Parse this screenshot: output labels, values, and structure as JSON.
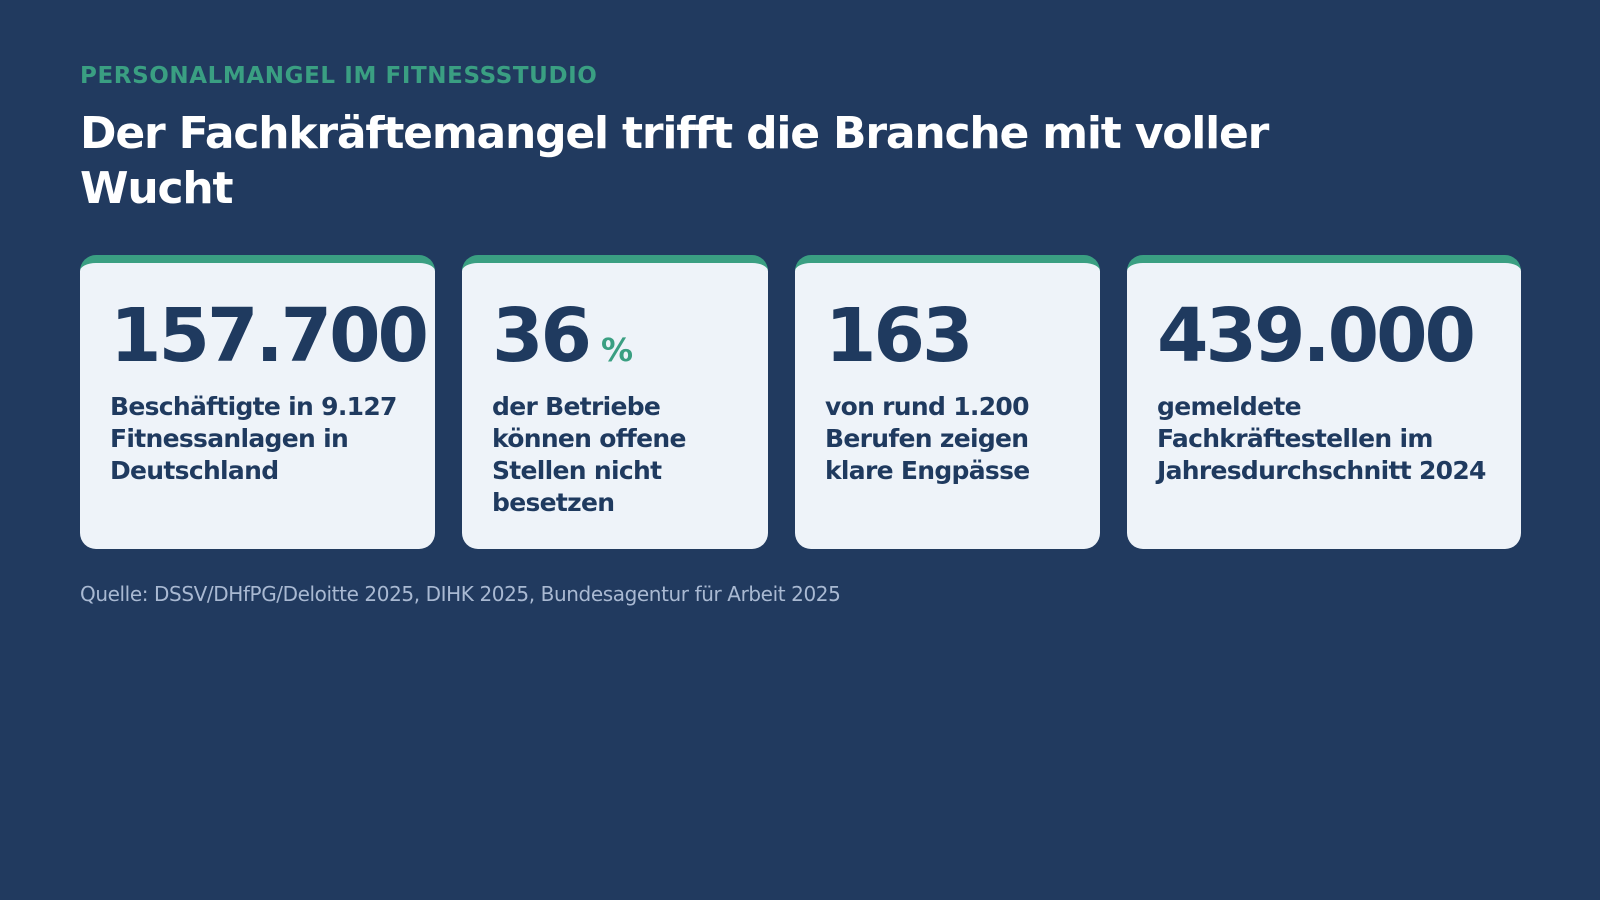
{
  "header": {
    "eyebrow": "PERSONALMANGEL IM FITNESSSTUDIO",
    "title": "Der Fachkräftemangel trifft die Branche mit voller Wucht"
  },
  "stats": [
    {
      "value": "157.700",
      "unit": "",
      "description": "Beschäftigte in 9.127 Fitnessanlagen in Deutschland"
    },
    {
      "value": "36",
      "unit": "%",
      "description": "der Betriebe können offene Stellen nicht besetzen"
    },
    {
      "value": "163",
      "unit": "",
      "description": "von rund 1.200 Berufen zeigen klare Engpässe"
    },
    {
      "value": "439.000",
      "unit": "",
      "description": "gemeldete Fachkräftestellen im Jahresdurchschnitt 2024"
    }
  ],
  "source": "Quelle: DSSV/DHfPG/Deloitte 2025, DIHK 2025, Bundesagentur für Arbeit 2025",
  "colors": {
    "background": "#213a5f",
    "accent": "#3a9f82",
    "card": "#eef3f9",
    "text_dark": "#1f3a5f",
    "source_text": "#a9b9d2"
  }
}
